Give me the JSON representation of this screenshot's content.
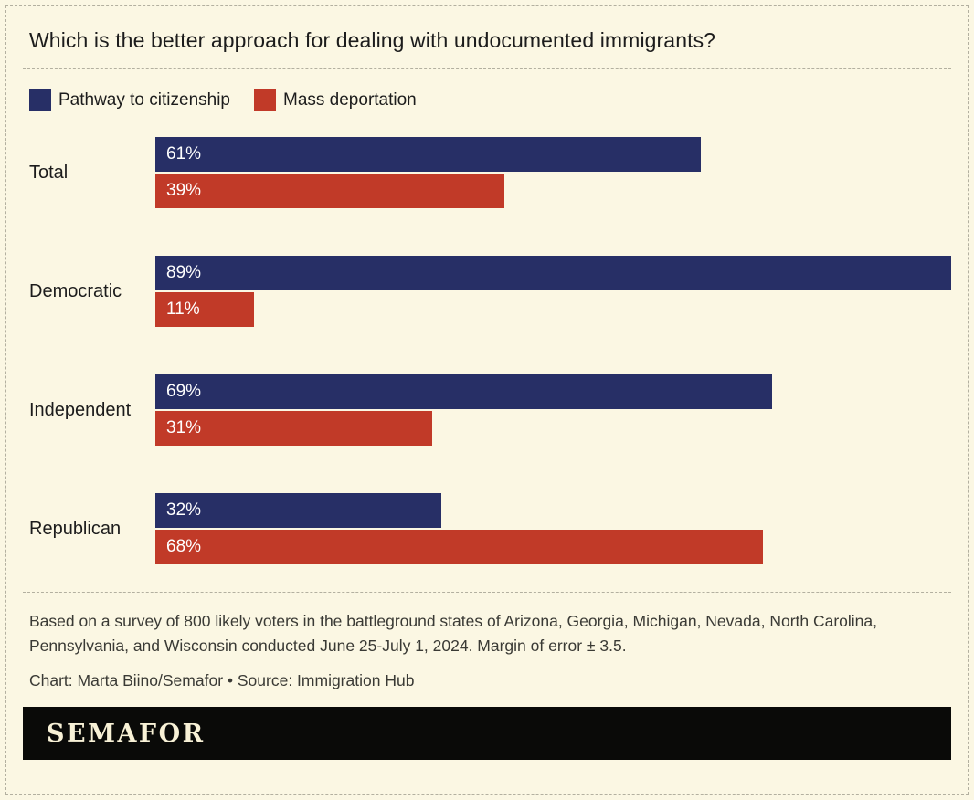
{
  "title": "Which is the better approach for dealing with undocumented immigrants?",
  "legend": [
    {
      "label": "Pathway to citizenship",
      "color": "#272f66"
    },
    {
      "label": "Mass deportation",
      "color": "#c13a28"
    }
  ],
  "chart_data": {
    "type": "bar",
    "orientation": "horizontal",
    "title": "Which is the better approach for dealing with undocumented immigrants?",
    "categories": [
      "Total",
      "Democratic",
      "Independent",
      "Republican"
    ],
    "series": [
      {
        "name": "Pathway to citizenship",
        "color": "#272f66",
        "values": [
          61,
          89,
          69,
          32
        ]
      },
      {
        "name": "Mass deportation",
        "color": "#c13a28",
        "values": [
          39,
          11,
          31,
          68
        ]
      }
    ],
    "value_suffix": "%",
    "xlim": [
      0,
      89
    ],
    "grid": false,
    "legend_position": "top",
    "value_labels": "inside-left"
  },
  "notes": {
    "survey": "Based on a survey of 800 likely voters in the battleground states of Arizona, Georgia, Michigan, Nevada, North Carolina, Pennsylvania, and Wisconsin conducted June 25-July 1, 2024. Margin of error ± 3.5.",
    "credit": "Chart: Marta Biino/Semafor • Source: Immigration Hub"
  },
  "footer": {
    "brand": "SEMAFOR"
  },
  "colors": {
    "background": "#fbf7e3",
    "navy": "#272f66",
    "red": "#c13a28",
    "text": "#1c1c1c",
    "muted": "#3a3a35",
    "border": "#b3b0a0",
    "footer_bg": "#0a0a08",
    "footer_text": "#f8f1d6"
  }
}
